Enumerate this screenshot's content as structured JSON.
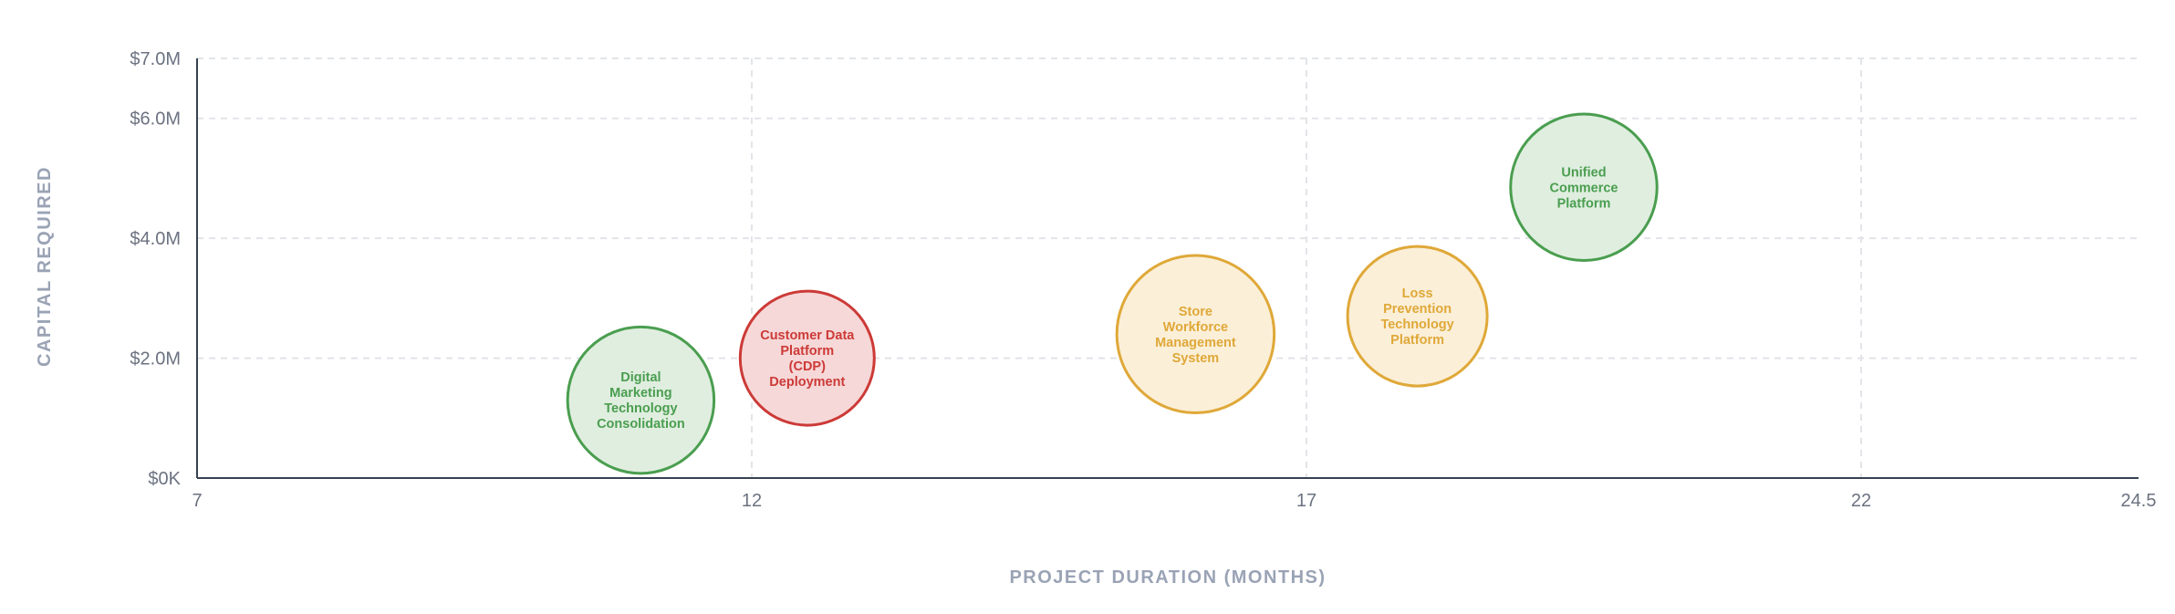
{
  "colors": {
    "green": {
      "stroke": "#4a9e4f",
      "fill": "#e0eee0",
      "text": "#4a9e4f"
    },
    "red": {
      "stroke": "#cc3a37",
      "fill": "#f6d8d8",
      "text": "#cc3a37"
    },
    "amber": {
      "stroke": "#dfa838",
      "fill": "#fbefd8",
      "text": "#dfa838"
    },
    "grid": "#e2e4e9",
    "axis": "#374151"
  },
  "chart_data": {
    "type": "scatter",
    "subtype": "bubble",
    "xlabel": "PROJECT DURATION (MONTHS)",
    "ylabel": "CAPITAL REQUIRED",
    "xlim": [
      7,
      24.5
    ],
    "ylim": [
      0,
      7.0
    ],
    "x_ticks": [
      7,
      12,
      17,
      22,
      24.5
    ],
    "x_tick_labels": [
      "7",
      "12",
      "17",
      "22",
      "24.5"
    ],
    "y_ticks": [
      0,
      2.0,
      4.0,
      6.0,
      7.0
    ],
    "y_tick_labels": [
      "$0K",
      "$2.0M",
      "$4.0M",
      "$6.0M",
      "$7.0M"
    ],
    "grid": true,
    "points": [
      {
        "label": [
          "Digital",
          "Marketing",
          "Technology",
          "Consolidation"
        ],
        "x": 11.0,
        "y": 1.3,
        "size": 1.07,
        "color": "green"
      },
      {
        "label": [
          "Customer Data",
          "Platform",
          "(CDP)",
          "Deployment"
        ],
        "x": 12.5,
        "y": 2.0,
        "size": 0.98,
        "color": "red"
      },
      {
        "label": [
          "Store",
          "Workforce",
          "Management",
          "System"
        ],
        "x": 16.0,
        "y": 2.4,
        "size": 1.15,
        "color": "amber"
      },
      {
        "label": [
          "Loss",
          "Prevention",
          "Technology",
          "Platform"
        ],
        "x": 18.0,
        "y": 2.7,
        "size": 1.02,
        "color": "amber"
      },
      {
        "label": [
          "Unified",
          "Commerce",
          "Platform"
        ],
        "x": 19.5,
        "y": 4.85,
        "size": 1.07,
        "color": "green"
      }
    ]
  }
}
